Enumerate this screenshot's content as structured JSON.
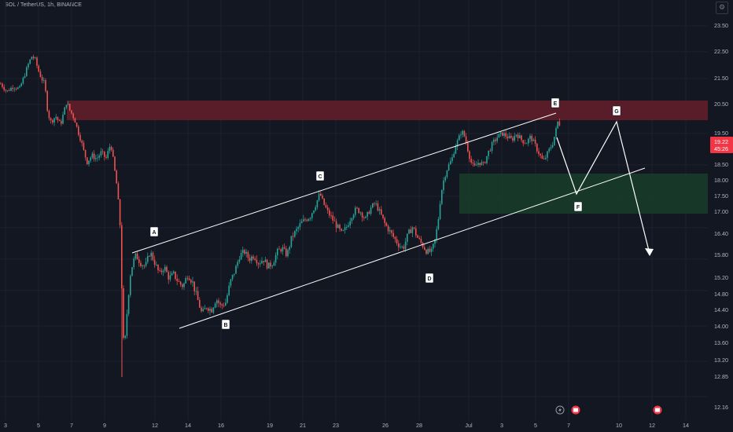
{
  "header": {
    "symbol": "SOL / TetherUS, 1h, BINANCE"
  },
  "last_price": {
    "value": "19.22",
    "countdown": "45:26"
  },
  "event_icons": [
    "bolt-icon",
    "flag-icon",
    "flag-icon"
  ],
  "colors": {
    "background": "#131722",
    "up": "#26a69a",
    "down": "#ef5350",
    "resistance_zone": "#5c1e29",
    "support_zone": "#173a2a",
    "annotation": "#ffffff",
    "price_tag": "#f23645"
  },
  "chart_data": {
    "type": "candlestick",
    "title": "SOL / TetherUS, 1h, BINANCE",
    "x_tick_labels": [
      "3",
      "5",
      "7",
      "9",
      "12",
      "14",
      "16",
      "19",
      "21",
      "23",
      "26",
      "28",
      "Jul",
      "3",
      "5",
      "7",
      "10",
      "12",
      "14"
    ],
    "y_tick_labels": [
      "12.16",
      "12.85",
      "13.20",
      "13.60",
      "14.00",
      "14.40",
      "14.80",
      "15.20",
      "15.80",
      "16.40",
      "17.00",
      "17.50",
      "18.00",
      "18.50",
      "19.50",
      "20.50",
      "21.50",
      "22.50",
      "23.50"
    ],
    "price_path": [
      [
        0,
        21.3
      ],
      [
        8,
        21.0
      ],
      [
        16,
        21.2
      ],
      [
        24,
        21.1
      ],
      [
        30,
        21.6
      ],
      [
        36,
        22.1
      ],
      [
        40,
        22.35
      ],
      [
        44,
        22.2
      ],
      [
        48,
        21.8
      ],
      [
        52,
        21.5
      ],
      [
        56,
        21.3
      ],
      [
        60,
        20.2
      ],
      [
        64,
        19.9
      ],
      [
        70,
        20.1
      ],
      [
        76,
        19.8
      ],
      [
        80,
        20.2
      ],
      [
        84,
        20.6
      ],
      [
        88,
        20.3
      ],
      [
        94,
        20.0
      ],
      [
        98,
        19.6
      ],
      [
        102,
        19.3
      ],
      [
        106,
        18.9
      ],
      [
        110,
        18.6
      ],
      [
        116,
        18.8
      ],
      [
        122,
        18.7
      ],
      [
        128,
        18.9
      ],
      [
        134,
        18.7
      ],
      [
        140,
        19.2
      ],
      [
        144,
        18.5
      ],
      [
        148,
        17.8
      ],
      [
        152,
        16.6
      ],
      [
        155,
        14.2
      ],
      [
        157,
        13.3
      ],
      [
        159,
        13.9
      ],
      [
        162,
        14.7
      ],
      [
        165,
        15.3
      ],
      [
        168,
        15.6
      ],
      [
        172,
        15.8
      ],
      [
        178,
        15.6
      ],
      [
        184,
        15.5
      ],
      [
        190,
        15.9
      ],
      [
        196,
        15.6
      ],
      [
        202,
        15.3
      ],
      [
        208,
        15.5
      ],
      [
        214,
        15.2
      ],
      [
        220,
        15.3
      ],
      [
        226,
        15.1
      ],
      [
        232,
        15.0
      ],
      [
        238,
        15.3
      ],
      [
        244,
        15.1
      ],
      [
        250,
        14.7
      ],
      [
        256,
        14.3
      ],
      [
        262,
        14.5
      ],
      [
        268,
        14.4
      ],
      [
        274,
        14.7
      ],
      [
        280,
        14.5
      ],
      [
        286,
        14.6
      ],
      [
        292,
        15.1
      ],
      [
        298,
        15.4
      ],
      [
        304,
        15.8
      ],
      [
        310,
        15.9
      ],
      [
        316,
        15.7
      ],
      [
        322,
        15.8
      ],
      [
        328,
        15.6
      ],
      [
        334,
        15.7
      ],
      [
        340,
        15.5
      ],
      [
        346,
        15.6
      ],
      [
        352,
        15.9
      ],
      [
        358,
        16.0
      ],
      [
        364,
        15.8
      ],
      [
        370,
        16.3
      ],
      [
        376,
        16.5
      ],
      [
        382,
        16.7
      ],
      [
        388,
        16.8
      ],
      [
        394,
        16.9
      ],
      [
        400,
        17.2
      ],
      [
        406,
        17.6
      ],
      [
        410,
        17.3
      ],
      [
        416,
        17.0
      ],
      [
        422,
        16.8
      ],
      [
        428,
        16.6
      ],
      [
        434,
        16.4
      ],
      [
        440,
        16.6
      ],
      [
        446,
        16.9
      ],
      [
        452,
        17.1
      ],
      [
        458,
        17.0
      ],
      [
        464,
        16.8
      ],
      [
        470,
        17.1
      ],
      [
        476,
        17.3
      ],
      [
        482,
        17.0
      ],
      [
        488,
        16.7
      ],
      [
        494,
        16.5
      ],
      [
        500,
        16.3
      ],
      [
        506,
        16.1
      ],
      [
        512,
        16.0
      ],
      [
        518,
        16.4
      ],
      [
        524,
        16.6
      ],
      [
        530,
        16.3
      ],
      [
        536,
        16.1
      ],
      [
        542,
        15.9
      ],
      [
        548,
        15.9
      ],
      [
        552,
        16.2
      ],
      [
        556,
        16.7
      ],
      [
        560,
        17.6
      ],
      [
        564,
        18.1
      ],
      [
        568,
        18.4
      ],
      [
        574,
        18.7
      ],
      [
        578,
        19.1
      ],
      [
        582,
        19.3
      ],
      [
        586,
        19.6
      ],
      [
        590,
        19.4
      ],
      [
        594,
        19.0
      ],
      [
        598,
        18.6
      ],
      [
        602,
        18.4
      ],
      [
        608,
        18.6
      ],
      [
        614,
        18.5
      ],
      [
        620,
        18.9
      ],
      [
        626,
        19.2
      ],
      [
        632,
        19.4
      ],
      [
        638,
        19.5
      ],
      [
        644,
        19.4
      ],
      [
        650,
        19.3
      ],
      [
        656,
        19.5
      ],
      [
        662,
        19.3
      ],
      [
        668,
        19.2
      ],
      [
        674,
        19.4
      ],
      [
        680,
        19.1
      ],
      [
        686,
        18.8
      ],
      [
        690,
        18.6
      ],
      [
        696,
        18.9
      ],
      [
        702,
        19.2
      ],
      [
        706,
        19.6
      ],
      [
        710,
        20.1
      ],
      [
        712,
        19.22
      ]
    ]
  }
}
